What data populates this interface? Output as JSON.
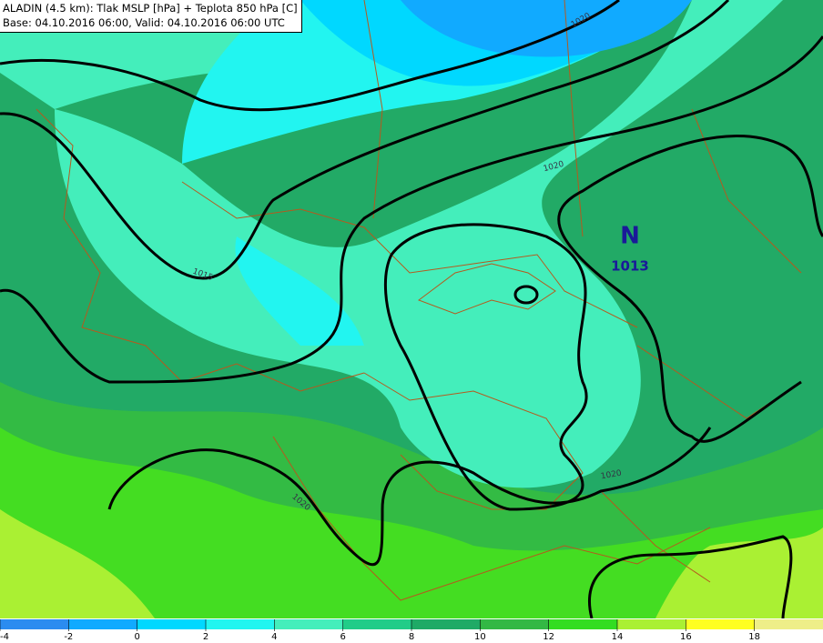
{
  "header": {
    "line1": "ALADIN (4.5 km): Tlak MSLP [hPa] + Teplota 850 hPa [C]",
    "line2": "Base: 04.10.2016 06:00, Valid: 04.10.2016 06:00 UTC"
  },
  "pressure_center": {
    "letter": "N",
    "value": "1013"
  },
  "isobar_labels": [
    "1020",
    "1020",
    "1015",
    "1020",
    "1020"
  ],
  "colorbar": {
    "ticks": [
      -4,
      -2,
      0,
      2,
      4,
      6,
      8,
      10,
      12,
      14,
      16,
      18
    ],
    "colors": [
      "#2b8cf0",
      "#11aaff",
      "#00d8ff",
      "#22f5f0",
      "#44eebb",
      "#22cc88",
      "#1faa66",
      "#33b844",
      "#33dd22",
      "#aaf033",
      "#ffff22",
      "#eeee88"
    ]
  }
}
